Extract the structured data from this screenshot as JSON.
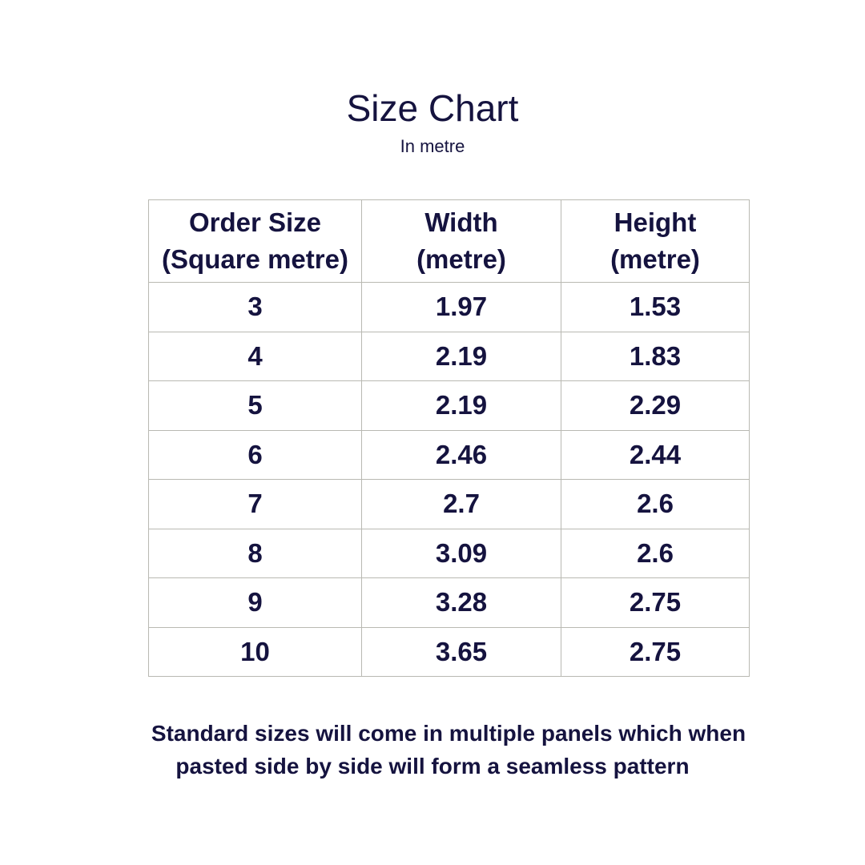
{
  "title": "Size Chart",
  "subtitle": "In metre",
  "table": {
    "headers": [
      {
        "line1": "Order Size",
        "line2": "(Square metre)"
      },
      {
        "line1": "Width",
        "line2": "(metre)"
      },
      {
        "line1": "Height",
        "line2": "(metre)"
      }
    ],
    "rows": [
      [
        "3",
        "1.97",
        "1.53"
      ],
      [
        "4",
        "2.19",
        "1.83"
      ],
      [
        "5",
        "2.19",
        "2.29"
      ],
      [
        "6",
        "2.46",
        "2.44"
      ],
      [
        "7",
        "2.7",
        "2.6"
      ],
      [
        "8",
        "3.09",
        "2.6"
      ],
      [
        "9",
        "3.28",
        "2.75"
      ],
      [
        "10",
        "3.65",
        "2.75"
      ]
    ]
  },
  "note": {
    "line1": "Standard sizes  will come in multiple panels which when",
    "line2": "pasted side by side will form a seamless pattern"
  },
  "colors": {
    "text": "#15133f",
    "border": "#b9b9b2",
    "background": "#ffffff"
  }
}
